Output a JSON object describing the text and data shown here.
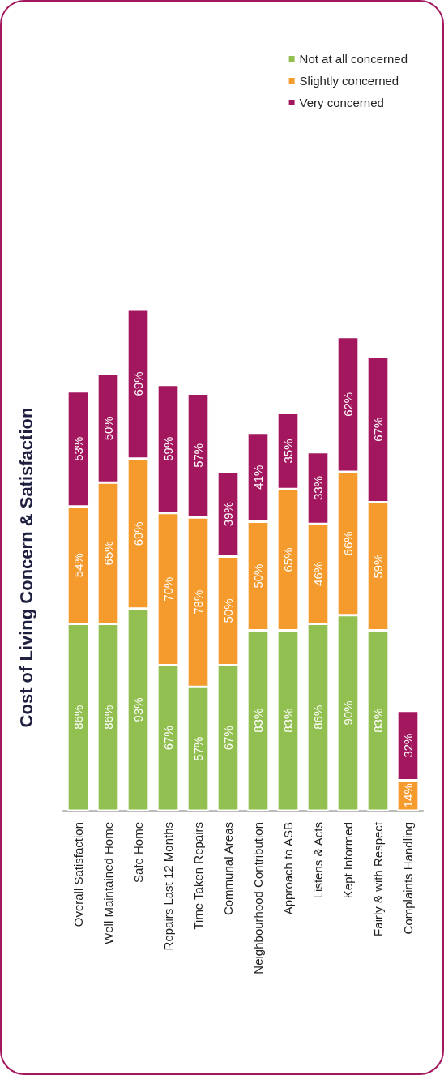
{
  "chart_data": {
    "type": "bar",
    "title": "Cost of Living Concern & Satisfaction",
    "stacked": true,
    "legend": "top right",
    "categories": [
      "Overall Satisfaction",
      "Well Maintained Home",
      "Safe Home",
      "Repairs Last 12 Months",
      "Time Taken Repairs",
      "Communal Areas",
      "Neighbourhood Contribution",
      "Approach to ASB",
      "Listens & Acts",
      "Kept Informed",
      "Fairly & with Respect",
      "Complaints Handling"
    ],
    "series": [
      {
        "name": "Not at all concerned",
        "color": "#92c050",
        "values": [
          86,
          86,
          93,
          67,
          57,
          67,
          83,
          83,
          86,
          90,
          83,
          null
        ],
        "value_labels": [
          "86%",
          "86%",
          "93%",
          "67%",
          "57%",
          "67%",
          "83%",
          "83%",
          "86%",
          "90%",
          "83%",
          null
        ]
      },
      {
        "name": "Slightly concerned",
        "color": "#f59a2c",
        "values": [
          54,
          65,
          69,
          70,
          78,
          50,
          50,
          65,
          46,
          66,
          59,
          14
        ],
        "value_labels": [
          "54%",
          "65%",
          "69%",
          "70%",
          "78%",
          "50%",
          "50%",
          "65%",
          "46%",
          "66%",
          "59%",
          "14%"
        ]
      },
      {
        "name": "Very concerned",
        "color": "#a3175f",
        "values": [
          53,
          50,
          69,
          59,
          57,
          39,
          41,
          35,
          33,
          62,
          67,
          32
        ],
        "value_labels": [
          "53%",
          "50%",
          "69%",
          "59%",
          "57%",
          "39%",
          "41%",
          "35%",
          "33%",
          "62%",
          "67%",
          "32%"
        ]
      }
    ]
  }
}
